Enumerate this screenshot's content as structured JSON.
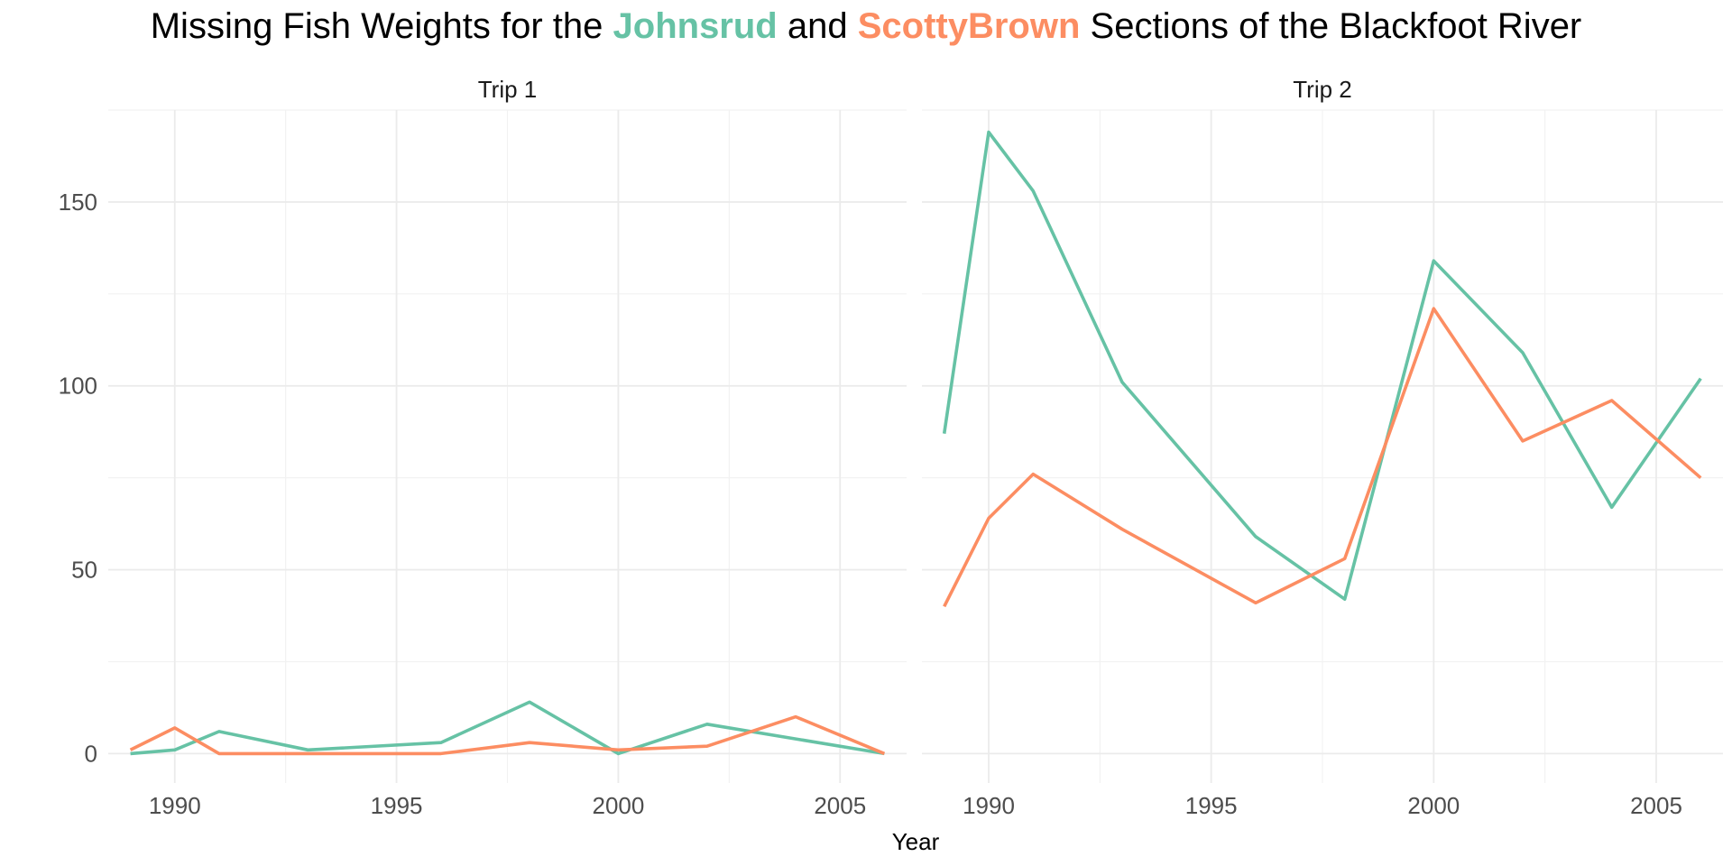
{
  "chart_data": {
    "type": "line",
    "title": {
      "prefix": "Missing Fish Weights for the ",
      "middle": " and ",
      "suffix": " Sections of the Blackfoot River"
    },
    "xlabel": "Year",
    "ylabel": "",
    "xlim": [
      1988.5,
      2006.5
    ],
    "ylim": [
      -8,
      175
    ],
    "x_ticks": [
      1990,
      1995,
      2000,
      2005
    ],
    "y_ticks": [
      0,
      50,
      100,
      150
    ],
    "grid": true,
    "legend": "none (series names shown in title colors)",
    "series": [
      {
        "name": "Johnsrud",
        "color": "#66c2a5"
      },
      {
        "name": "ScottyBrown",
        "color": "#fc8d62"
      }
    ],
    "facets": [
      {
        "label": "Trip 1",
        "series": [
          {
            "name": "Johnsrud",
            "x": [
              1989,
              1990,
              1991,
              1993,
              1996,
              1998,
              2000,
              2002,
              2004,
              2006
            ],
            "y": [
              0,
              1,
              6,
              1,
              3,
              14,
              0,
              8,
              4,
              0
            ]
          },
          {
            "name": "ScottyBrown",
            "x": [
              1989,
              1990,
              1991,
              1993,
              1996,
              1998,
              2000,
              2002,
              2004,
              2006
            ],
            "y": [
              1,
              7,
              0,
              0,
              0,
              3,
              1,
              2,
              10,
              0
            ]
          }
        ]
      },
      {
        "label": "Trip 2",
        "series": [
          {
            "name": "Johnsrud",
            "x": [
              1989,
              1990,
              1991,
              1993,
              1996,
              1998,
              2000,
              2002,
              2004,
              2006
            ],
            "y": [
              87,
              169,
              153,
              101,
              59,
              42,
              134,
              109,
              67,
              102
            ]
          },
          {
            "name": "ScottyBrown",
            "x": [
              1989,
              1990,
              1991,
              1993,
              1996,
              1998,
              2000,
              2002,
              2004,
              2006
            ],
            "y": [
              40,
              64,
              76,
              61,
              41,
              53,
              121,
              85,
              96,
              75
            ]
          }
        ]
      }
    ]
  }
}
